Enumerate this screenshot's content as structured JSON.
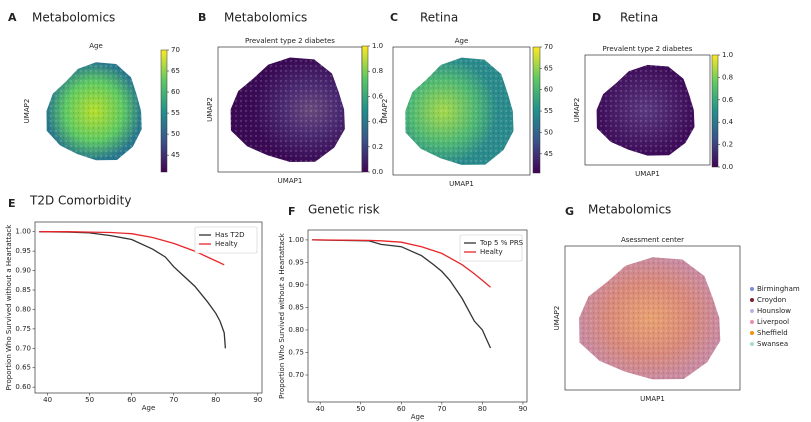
{
  "chart_data": [
    {
      "type": "scatter",
      "panel": "A",
      "heading": "Metabolomics",
      "title": "Age",
      "ylabel": "UMAP2",
      "colorbar": {
        "lim": [
          41,
          70
        ],
        "ticks": [
          45,
          50,
          55,
          60,
          65,
          70
        ],
        "colormap": "viridis"
      }
    },
    {
      "type": "scatter",
      "panel": "B",
      "heading": "Metabolomics",
      "title": "Prevalent type 2 diabetes",
      "xlabel": "UMAP1",
      "ylabel": "UMAP2",
      "colorbar": {
        "lim": [
          0,
          1
        ],
        "ticks": [
          {
            "value": 0,
            "label": "0.0"
          },
          {
            "value": 0.2,
            "label": "0.2"
          },
          {
            "value": 0.4,
            "label": "0.4"
          },
          {
            "value": 0.6,
            "label": "0.6"
          },
          {
            "value": 0.8,
            "label": "0.8"
          },
          {
            "value": 1,
            "label": "1.0"
          }
        ],
        "colormap": "viridis"
      }
    },
    {
      "type": "scatter",
      "panel": "C",
      "heading": "Retina",
      "title": "Age",
      "xlabel": "UMAP1",
      "ylabel": "UMAP2",
      "colorbar": {
        "lim": [
          40.5,
          70
        ],
        "ticks": [
          45,
          50,
          55,
          60,
          65,
          70
        ],
        "colormap": "viridis"
      }
    },
    {
      "type": "scatter",
      "panel": "D",
      "heading": "Retina",
      "title": "Prevalent type 2 diabetes",
      "xlabel": "UMAP1",
      "ylabel": "UMAP2",
      "colorbar": {
        "lim": [
          0,
          1
        ],
        "ticks": [
          {
            "value": 0,
            "label": "0.0"
          },
          {
            "value": 0.2,
            "label": "0.2"
          },
          {
            "value": 0.4,
            "label": "0.4"
          },
          {
            "value": 0.6,
            "label": "0.6"
          },
          {
            "value": 0.8,
            "label": "0.8"
          },
          {
            "value": 1,
            "label": "1.0"
          }
        ],
        "colormap": "viridis"
      }
    },
    {
      "type": "line",
      "panel": "E",
      "heading": "T2D Comorbidity",
      "xlabel": "Age",
      "ylabel": "Proportion Who Survived without a Heartattack",
      "xlim": [
        37,
        91
      ],
      "ylim": [
        0.585,
        1.025
      ],
      "xticks": [
        40,
        50,
        60,
        70,
        80,
        90
      ],
      "yticks": [
        {
          "value": 0.6,
          "label": "0.60"
        },
        {
          "value": 0.65,
          "label": "0.65"
        },
        {
          "value": 0.7,
          "label": "0.70"
        },
        {
          "value": 0.75,
          "label": "0.75"
        },
        {
          "value": 0.8,
          "label": "0.80"
        },
        {
          "value": 0.85,
          "label": "0.85"
        },
        {
          "value": 0.9,
          "label": "0.90"
        },
        {
          "value": 0.95,
          "label": "0.95"
        },
        {
          "value": 1,
          "label": "1.00"
        }
      ],
      "legend": "upper right",
      "series": [
        {
          "name": "Has T2D",
          "color": "#333333",
          "x": [
            38,
            45,
            50,
            55,
            60,
            65,
            68,
            70,
            72,
            75,
            78,
            80,
            81,
            82,
            82.3
          ],
          "values": [
            1.0,
            0.999,
            0.997,
            0.99,
            0.98,
            0.955,
            0.935,
            0.91,
            0.89,
            0.86,
            0.82,
            0.79,
            0.77,
            0.74,
            0.7
          ]
        },
        {
          "name": "Healty",
          "color": "#e8262a",
          "x": [
            38,
            45,
            50,
            55,
            60,
            65,
            70,
            75,
            78,
            80,
            82
          ],
          "values": [
            1.0,
            1.0,
            0.999,
            0.998,
            0.995,
            0.985,
            0.97,
            0.95,
            0.935,
            0.925,
            0.915
          ]
        }
      ]
    },
    {
      "type": "line",
      "panel": "F",
      "heading": "Genetic risk",
      "xlabel": "Age",
      "ylabel": "Proportion Who Survived without a Heartattack",
      "xlim": [
        37,
        91
      ],
      "ylim": [
        0.64,
        1.022
      ],
      "xticks": [
        40,
        50,
        60,
        70,
        80,
        90
      ],
      "yticks": [
        {
          "value": 0.7,
          "label": "0.70"
        },
        {
          "value": 0.75,
          "label": "0.75"
        },
        {
          "value": 0.8,
          "label": "0.80"
        },
        {
          "value": 0.85,
          "label": "0.85"
        },
        {
          "value": 0.9,
          "label": "0.90"
        },
        {
          "value": 0.95,
          "label": "0.95"
        },
        {
          "value": 1,
          "label": "1.00"
        }
      ],
      "legend": "upper right",
      "series": [
        {
          "name": "Top 5 % PRS",
          "color": "#333333",
          "x": [
            38,
            52,
            55,
            60,
            65,
            68,
            70,
            72,
            75,
            78,
            80,
            81,
            82
          ],
          "values": [
            1.0,
            0.998,
            0.99,
            0.985,
            0.965,
            0.945,
            0.93,
            0.91,
            0.87,
            0.82,
            0.8,
            0.78,
            0.76
          ]
        },
        {
          "name": "Healty",
          "color": "#e8262a",
          "x": [
            38,
            52,
            55,
            60,
            65,
            70,
            75,
            78,
            80,
            82
          ],
          "values": [
            1.0,
            0.999,
            0.998,
            0.995,
            0.985,
            0.97,
            0.945,
            0.925,
            0.91,
            0.895
          ]
        }
      ]
    },
    {
      "type": "scatter",
      "panel": "G",
      "heading": "Metabolomics",
      "title": "Asessment center",
      "xlabel": "UMAP1",
      "ylabel": "UMAP2",
      "legend": "right",
      "legend_entries": [
        {
          "name": "Birmingham",
          "color": "#6f8fd8"
        },
        {
          "name": "Croydon",
          "color": "#7a1f2b"
        },
        {
          "name": "Hounslow",
          "color": "#b8b4e8"
        },
        {
          "name": "Liverpool",
          "color": "#ec8fa8"
        },
        {
          "name": "Sheffield",
          "color": "#f2920f"
        },
        {
          "name": "Swansea",
          "color": "#a6dccb"
        }
      ]
    }
  ]
}
